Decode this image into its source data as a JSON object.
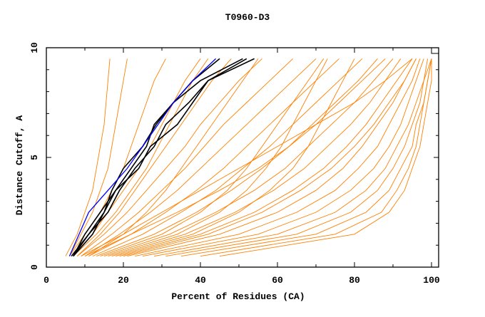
{
  "chart_data": {
    "type": "line",
    "title": "T0960-D3",
    "xlabel": "Percent of Residues (CA)",
    "ylabel": "Distance Cutoff, A",
    "xlim": [
      0,
      101.8
    ],
    "ylim": [
      0,
      10
    ],
    "x_ticks": [
      "0",
      "20",
      "40",
      "60",
      "80",
      "100"
    ],
    "y_ticks": [
      "0",
      "5",
      "10"
    ],
    "grid": false,
    "y": [
      0.5,
      1.5,
      2.5,
      3.5,
      4.5,
      5.5,
      6.5,
      7.5,
      8.5,
      9.5
    ],
    "colors": {
      "background_models": "#ff8000",
      "highlight": "#0000ff",
      "selected": "#000000"
    },
    "series_highlight": [
      {
        "x": [
          6,
          8.5,
          11,
          16,
          21,
          25,
          29,
          33,
          38,
          44
        ]
      }
    ],
    "series_selected": [
      {
        "x": [
          7,
          10,
          14,
          18,
          22,
          26,
          28,
          33,
          38,
          45
        ]
      },
      {
        "x": [
          6.5,
          11,
          15,
          17,
          20,
          25,
          28.5,
          33,
          40,
          51
        ]
      },
      {
        "x": [
          7,
          11,
          16,
          19,
          23,
          28,
          31,
          37,
          42,
          54
        ]
      },
      {
        "x": [
          7,
          12,
          15,
          18,
          24,
          27,
          34,
          38,
          42,
          52
        ]
      }
    ],
    "series_other": [
      {
        "x": [
          5,
          8,
          10,
          12,
          13,
          14,
          15,
          15.5,
          16,
          16.5
        ]
      },
      {
        "x": [
          6,
          9,
          12,
          14,
          16,
          17,
          18,
          19,
          20,
          21
        ]
      },
      {
        "x": [
          6,
          10,
          14,
          17,
          20,
          22,
          24,
          26,
          28,
          31
        ]
      },
      {
        "x": [
          7,
          12,
          16,
          20,
          24,
          27,
          30,
          33,
          36,
          40
        ]
      },
      {
        "x": [
          8,
          14,
          19,
          23,
          27,
          31,
          35,
          39,
          43,
          48
        ]
      },
      {
        "x": [
          8,
          15,
          21,
          26,
          31,
          36,
          40,
          45,
          50,
          56
        ]
      },
      {
        "x": [
          9,
          17,
          24,
          30,
          36,
          41,
          46,
          52,
          58,
          64
        ]
      },
      {
        "x": [
          10,
          19,
          27,
          34,
          40,
          46,
          52,
          58,
          64,
          70
        ]
      },
      {
        "x": [
          11,
          22,
          31,
          39,
          46,
          52,
          58,
          64,
          70,
          76
        ]
      },
      {
        "x": [
          12,
          25,
          35,
          44,
          51,
          58,
          64,
          70,
          76,
          82
        ]
      },
      {
        "x": [
          13,
          28,
          39,
          48,
          56,
          63,
          69,
          75,
          81,
          86
        ]
      },
      {
        "x": [
          15,
          32,
          44,
          54,
          62,
          68,
          74,
          80,
          85,
          90
        ]
      },
      {
        "x": [
          17,
          36,
          49,
          59,
          67,
          73,
          79,
          84,
          88,
          92
        ]
      },
      {
        "x": [
          19,
          40,
          54,
          64,
          72,
          78,
          83,
          87,
          91,
          95
        ]
      },
      {
        "x": [
          21,
          45,
          60,
          70,
          77,
          82,
          86,
          90,
          93,
          96
        ]
      },
      {
        "x": [
          23,
          50,
          65,
          75,
          81,
          86,
          89,
          92,
          95,
          97
        ]
      },
      {
        "x": [
          25,
          55,
          70,
          79,
          85,
          89,
          92,
          94,
          96,
          98
        ]
      },
      {
        "x": [
          28,
          60,
          75,
          83,
          88,
          91,
          94,
          96,
          98,
          99
        ]
      },
      {
        "x": [
          31,
          65,
          79,
          86,
          90,
          93,
          95,
          97,
          98,
          100
        ]
      },
      {
        "x": [
          35,
          70,
          83,
          89,
          92,
          95,
          96,
          98,
          99,
          100
        ]
      },
      {
        "x": [
          40,
          75,
          87,
          91,
          94,
          96,
          97,
          98,
          99,
          100
        ]
      },
      {
        "x": [
          45,
          80,
          89,
          93,
          95,
          97,
          98,
          99,
          100,
          100
        ]
      },
      {
        "x": [
          18,
          38,
          50,
          58,
          64,
          68,
          71,
          74,
          77,
          80
        ]
      },
      {
        "x": [
          14,
          30,
          40,
          47,
          52,
          56,
          60,
          64,
          68,
          72
        ]
      },
      {
        "x": [
          10,
          22,
          34,
          45,
          55,
          63,
          70,
          76,
          82,
          88
        ]
      },
      {
        "x": [
          9,
          20,
          30,
          40,
          50,
          60,
          70,
          80,
          88,
          95
        ]
      },
      {
        "x": [
          16,
          34,
          45,
          52,
          57,
          61,
          64,
          67,
          70,
          73
        ]
      },
      {
        "x": [
          20,
          42,
          56,
          66,
          74,
          80,
          85,
          89,
          93,
          96
        ]
      },
      {
        "x": [
          11,
          20,
          26,
          31,
          35,
          39,
          43,
          47,
          51,
          55
        ]
      },
      {
        "x": [
          7,
          13,
          18,
          22,
          26,
          29,
          32,
          35,
          38,
          42
        ]
      }
    ]
  }
}
